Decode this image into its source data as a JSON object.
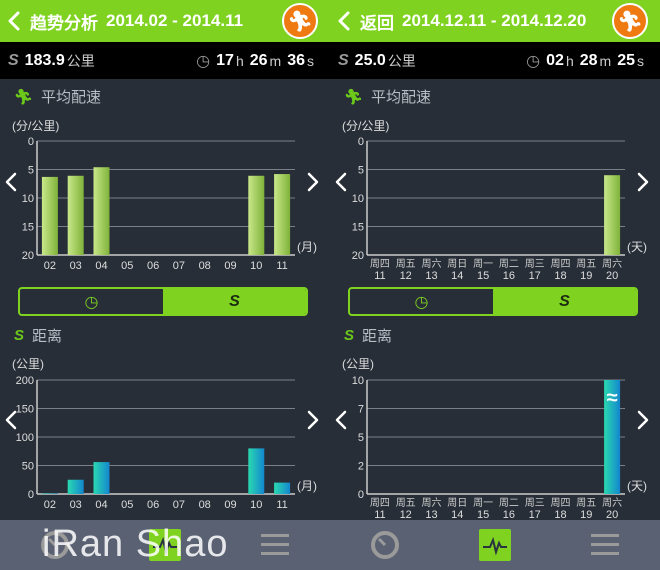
{
  "colors": {
    "accent": "#7fd320",
    "run_button": "#f07a12",
    "pace_bar": "#a9d45a",
    "distance_bar": "#1aa6c9"
  },
  "panels": [
    {
      "header": {
        "title": "趋势分析",
        "range": "2014.02 - 2014.11"
      },
      "stats": {
        "distance": "183.9",
        "distance_unit": "公里",
        "h": "17",
        "h_unit": "h",
        "m": "26",
        "m_unit": "m",
        "s": "36",
        "s_unit": "s"
      },
      "pace_title": "平均配速",
      "pace_unit": "(分/公里)",
      "distance_title": "距离",
      "distance_unit": "(公里)",
      "toggle_active": "distance"
    },
    {
      "header": {
        "title": "返回",
        "range": "2014.12.11 - 2014.12.20"
      },
      "stats": {
        "distance": "25.0",
        "distance_unit": "公里",
        "h": "02",
        "h_unit": "h",
        "m": "28",
        "m_unit": "m",
        "s": "25",
        "s_unit": "s"
      },
      "pace_title": "平均配速",
      "pace_unit": "(分/公里)",
      "distance_title": "距离",
      "distance_unit": "(公里)",
      "toggle_active": "distance"
    }
  ],
  "watermark": "iRan Shao",
  "tabbar": {
    "items": [
      "dashboard-icon",
      "trend-icon",
      "menu-icon"
    ],
    "active": "trend-icon"
  },
  "chart_data": [
    {
      "type": "bar",
      "title": "平均配速",
      "ylabel": "(分/公里)",
      "xlabel": "(月)",
      "y_inverted": true,
      "ylim": [
        0,
        20
      ],
      "yticks": [
        "0",
        "5",
        "10",
        "15",
        "20"
      ],
      "categories": [
        "02",
        "03",
        "04",
        "05",
        "06",
        "07",
        "08",
        "09",
        "10",
        "11"
      ],
      "values": [
        6.3,
        6.1,
        4.6,
        null,
        null,
        null,
        null,
        null,
        6.1,
        5.8
      ]
    },
    {
      "type": "bar",
      "title": "距离",
      "ylabel": "(公里)",
      "xlabel": "(月)",
      "ylim": [
        0,
        200
      ],
      "yticks": [
        "0",
        "50",
        "100",
        "150",
        "200"
      ],
      "categories": [
        "02",
        "03",
        "04",
        "05",
        "06",
        "07",
        "08",
        "09",
        "10",
        "11"
      ],
      "values": [
        1,
        25,
        56,
        null,
        null,
        null,
        null,
        null,
        80,
        20
      ]
    },
    {
      "type": "bar",
      "title": "平均配速",
      "ylabel": "(分/公里)",
      "xlabel": "(天)",
      "y_inverted": true,
      "ylim": [
        0,
        20
      ],
      "yticks": [
        "0",
        "5",
        "10",
        "15",
        "20"
      ],
      "categories": [
        "11",
        "12",
        "13",
        "14",
        "15",
        "16",
        "17",
        "18",
        "19",
        "20"
      ],
      "weekdays": [
        "周四",
        "周五",
        "周六",
        "周日",
        "周一",
        "周二",
        "周三",
        "周四",
        "周五",
        "周六"
      ],
      "values": [
        null,
        null,
        null,
        null,
        null,
        null,
        null,
        null,
        null,
        6.0
      ]
    },
    {
      "type": "bar",
      "title": "距离",
      "ylabel": "(公里)",
      "xlabel": "(天)",
      "ylim": [
        0,
        10
      ],
      "yticks": [
        "0",
        "2",
        "5",
        "7",
        "10"
      ],
      "axis_break": "≈",
      "categories": [
        "11",
        "12",
        "13",
        "14",
        "15",
        "16",
        "17",
        "18",
        "19",
        "20"
      ],
      "weekdays": [
        "周四",
        "周五",
        "周六",
        "周日",
        "周一",
        "周二",
        "周三",
        "周四",
        "周五",
        "周六"
      ],
      "values": [
        null,
        null,
        null,
        null,
        null,
        null,
        null,
        null,
        null,
        25.0
      ]
    }
  ]
}
